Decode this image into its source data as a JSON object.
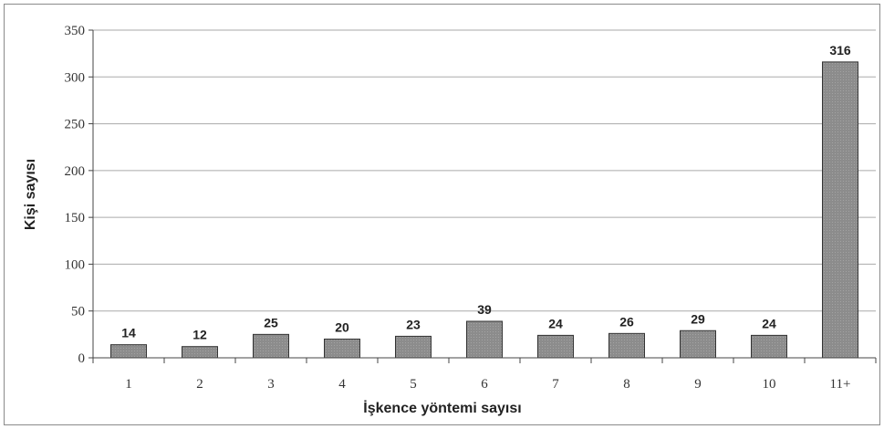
{
  "chart_data": {
    "type": "bar",
    "categories": [
      "1",
      "2",
      "3",
      "4",
      "5",
      "6",
      "7",
      "8",
      "9",
      "10",
      "11+"
    ],
    "values": [
      14,
      12,
      25,
      20,
      23,
      39,
      24,
      26,
      29,
      24,
      316
    ],
    "data_labels": [
      "14",
      "12",
      "25",
      "20",
      "23",
      "39",
      "24",
      "26",
      "29",
      "24",
      "316"
    ],
    "xlabel": "İşkence yöntemi sayısı",
    "ylabel": "Kişi sayısı",
    "ylim": [
      0,
      350
    ],
    "yticks": [
      0,
      50,
      100,
      150,
      200,
      250,
      300,
      350
    ],
    "grid": "horizontal",
    "legend": "none",
    "colors": {
      "bar": "#8c8c8c",
      "bar_edge": "#333333",
      "grid": "#aaaaaa",
      "axis": "#444444"
    }
  }
}
